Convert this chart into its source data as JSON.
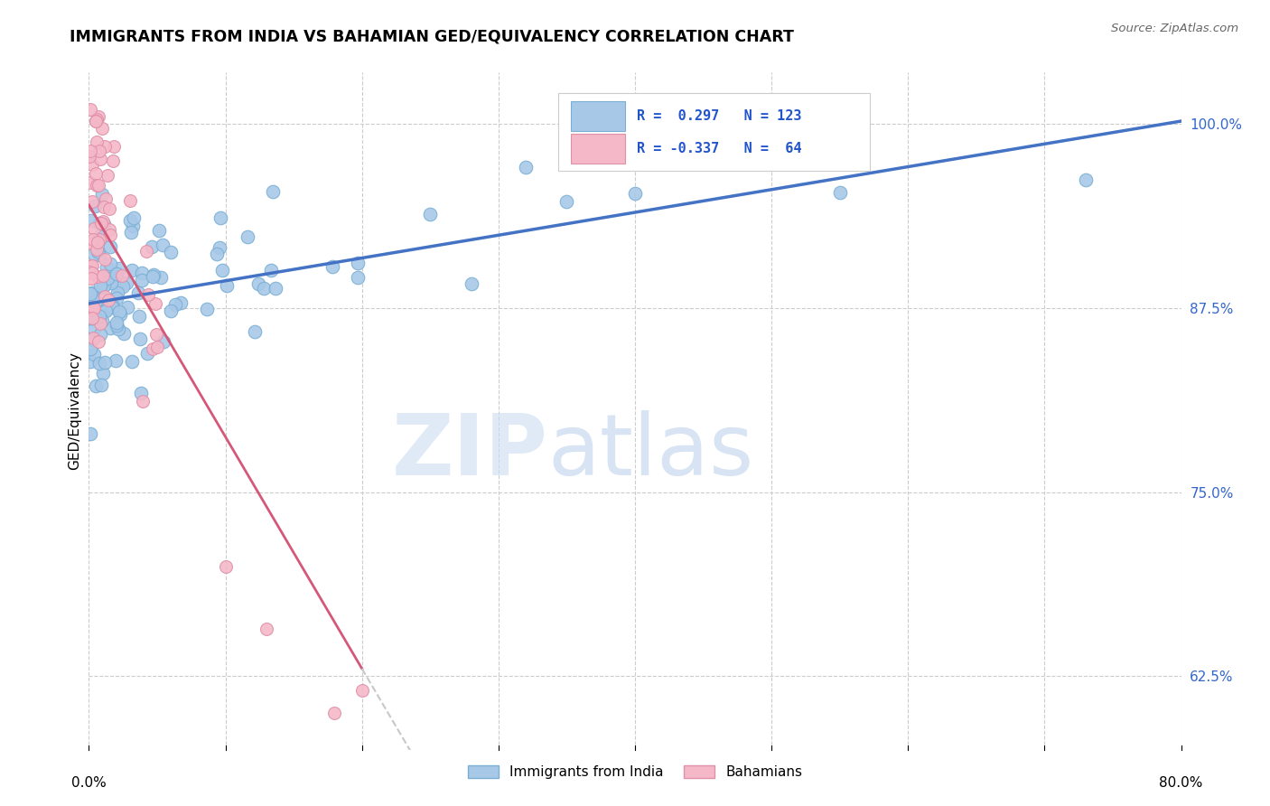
{
  "title": "IMMIGRANTS FROM INDIA VS BAHAMIAN GED/EQUIVALENCY CORRELATION CHART",
  "source": "Source: ZipAtlas.com",
  "ylabel": "GED/Equivalency",
  "ytick_values": [
    0.625,
    0.75,
    0.875,
    1.0
  ],
  "xmin": 0.0,
  "xmax": 0.8,
  "ymin": 0.575,
  "ymax": 1.035,
  "color_india": "#a8c8e8",
  "color_india_edge": "#7aafd4",
  "color_india_line": "#4472c4",
  "color_bahamian": "#f4b8c8",
  "color_bahamian_edge": "#e090a8",
  "color_bahamian_line": "#c8506878",
  "color_bahamian_line_solid": "#d45878",
  "color_bahamian_line_dash": "#c8c8c8",
  "watermark_zip_color": "#ccddf0",
  "watermark_atlas_color": "#b8ccec"
}
